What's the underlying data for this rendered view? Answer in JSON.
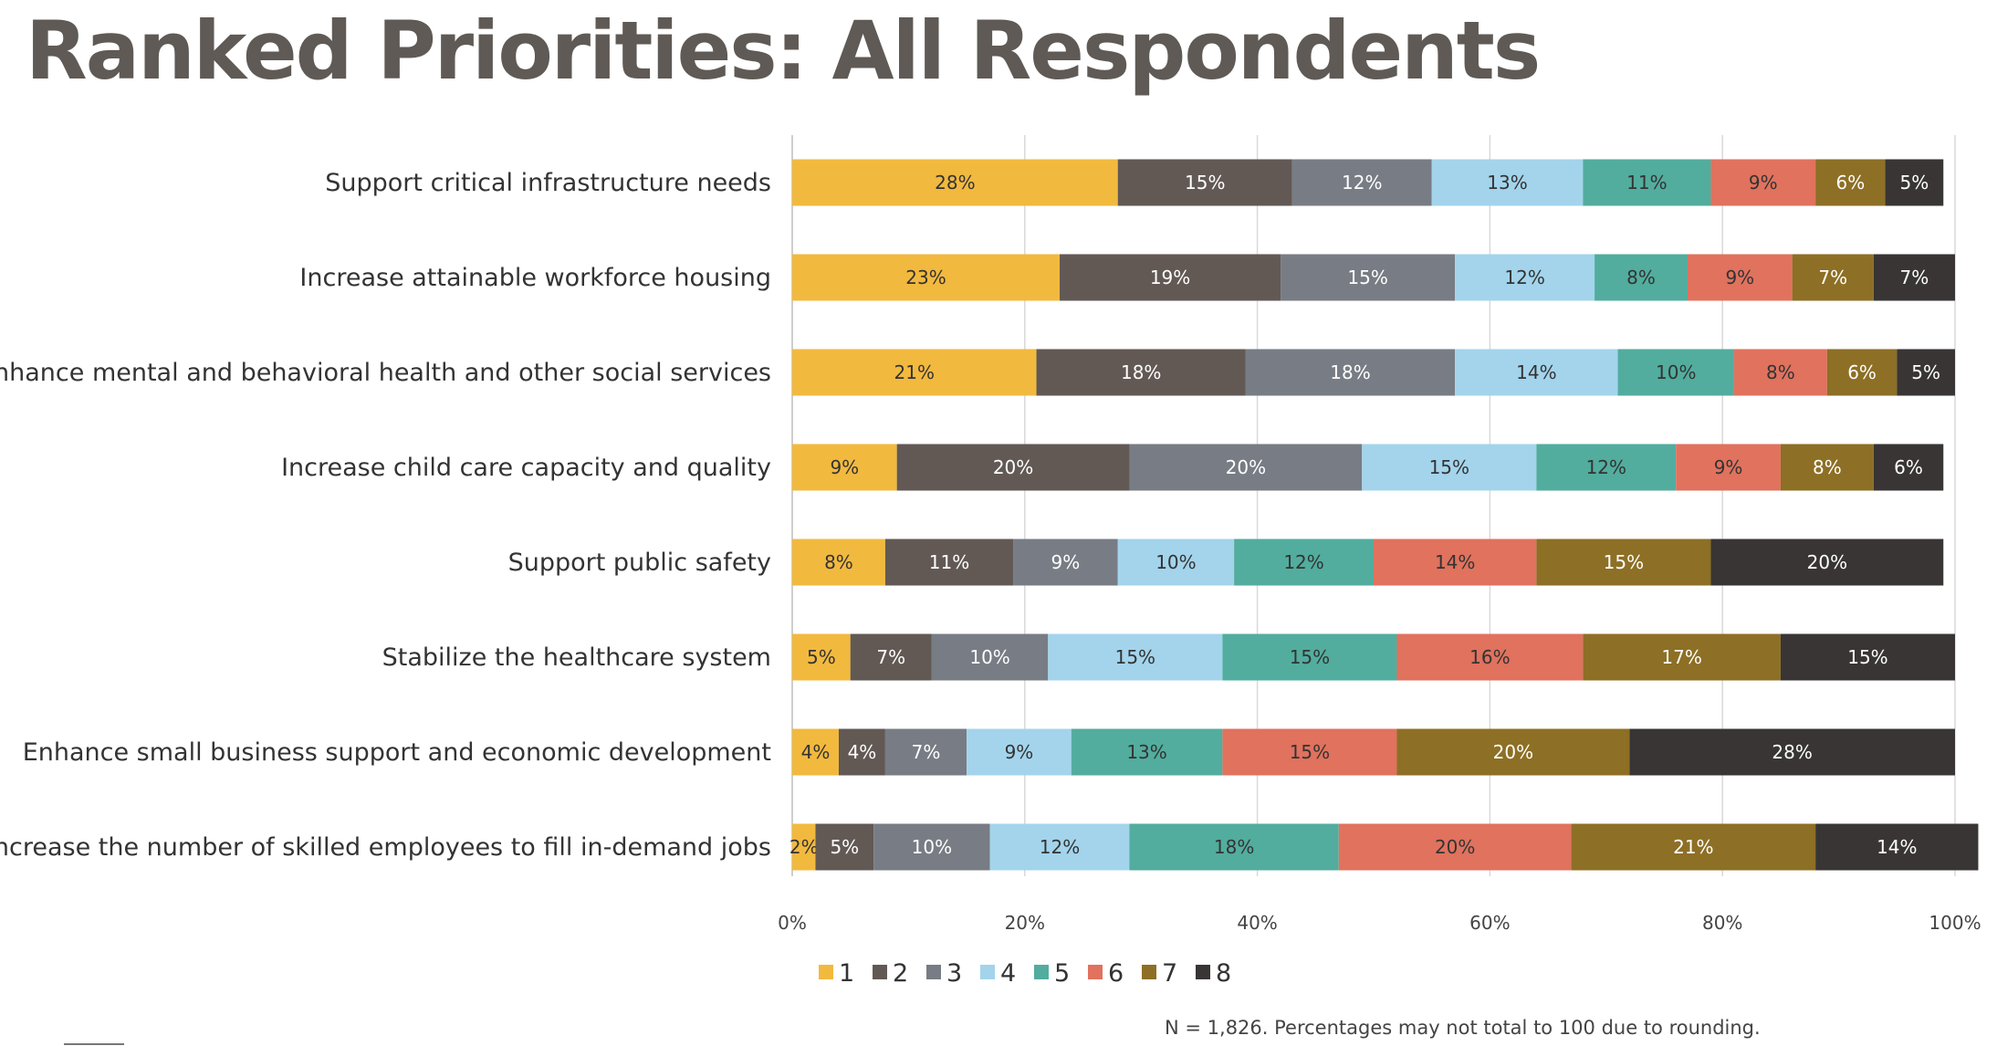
{
  "chart_data": {
    "type": "bar",
    "orientation": "horizontal",
    "stacked": true,
    "title": "Ranked Priorities: All Respondents",
    "categories": [
      "Support critical infrastructure needs",
      "Increase attainable workforce housing",
      "Enhance mental and behavioral health and other social services",
      "Increase child care capacity and quality",
      "Support public safety",
      "Stabilize the healthcare system",
      "Enhance small business support and economic development",
      "Increase the number of skilled employees to fill in-demand jobs"
    ],
    "series": [
      {
        "name": "1",
        "color": "#f2b93f",
        "labelColor": "#333333",
        "values": [
          28,
          23,
          21,
          9,
          8,
          5,
          4,
          2
        ]
      },
      {
        "name": "2",
        "color": "#625955",
        "labelColor": "#ffffff",
        "values": [
          15,
          19,
          18,
          20,
          11,
          7,
          4,
          5
        ]
      },
      {
        "name": "3",
        "color": "#787c84",
        "labelColor": "#ffffff",
        "values": [
          12,
          15,
          18,
          20,
          9,
          10,
          7,
          10
        ]
      },
      {
        "name": "4",
        "color": "#a3d4ec",
        "labelColor": "#333333",
        "values": [
          13,
          12,
          14,
          15,
          10,
          15,
          9,
          12
        ]
      },
      {
        "name": "5",
        "color": "#52ad9e",
        "labelColor": "#333333",
        "values": [
          11,
          8,
          10,
          12,
          12,
          15,
          13,
          18
        ]
      },
      {
        "name": "6",
        "color": "#e0725e",
        "labelColor": "#333333",
        "values": [
          9,
          9,
          8,
          9,
          14,
          16,
          15,
          20
        ]
      },
      {
        "name": "7",
        "color": "#8d6f25",
        "labelColor": "#ffffff",
        "values": [
          6,
          7,
          6,
          8,
          15,
          17,
          20,
          21
        ]
      },
      {
        "name": "8",
        "color": "#383534",
        "labelColor": "#ffffff",
        "values": [
          5,
          7,
          5,
          6,
          20,
          15,
          28,
          14
        ]
      }
    ],
    "xlim": [
      0,
      100
    ],
    "xticks": [
      0,
      20,
      40,
      60,
      80,
      100
    ],
    "xtick_labels": [
      "0%",
      "20%",
      "40%",
      "60%",
      "80%",
      "100%"
    ],
    "value_suffix": "%",
    "grid": true,
    "legend_position": "bottom"
  },
  "footnote": "N = 1,826. Percentages may not total to 100 due to rounding."
}
